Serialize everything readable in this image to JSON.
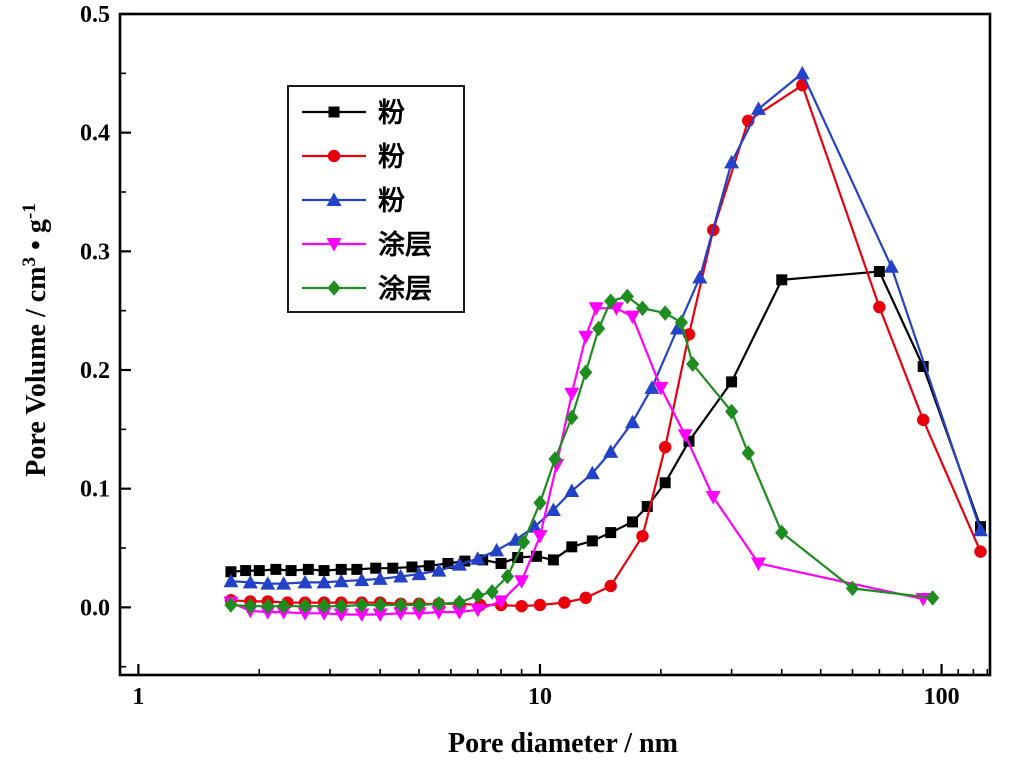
{
  "figure": {
    "background": "#ffffff"
  },
  "chart_data": {
    "type": "line",
    "title": "",
    "xlabel": "Pore diameter / nm",
    "ylabel": "Pore Volume / cm3 • g-1",
    "ylabel_parts": {
      "text1": "Pore Volume / cm",
      "sup1": "3",
      "text2": " • g",
      "sup2": "-1"
    },
    "x_scale": "log",
    "xlim": [
      0.9,
      132
    ],
    "ylim": [
      -0.057,
      0.5
    ],
    "grid": "off",
    "legend_position": "inside-upper-left",
    "xticks": {
      "values": [
        1,
        10,
        100
      ],
      "labels": [
        "1",
        "10",
        "100"
      ]
    },
    "x_minor_ticks": [
      2,
      3,
      4,
      5,
      6,
      7,
      8,
      9,
      20,
      30,
      40,
      50,
      60,
      70,
      80,
      90,
      110,
      120,
      130
    ],
    "yticks": {
      "values": [
        0.0,
        0.1,
        0.2,
        0.3,
        0.4,
        0.5
      ],
      "labels": [
        "0.0",
        "0.1",
        "0.2",
        "0.3",
        "0.4",
        "0.5"
      ]
    },
    "y_minor_ticks": [
      -0.05,
      0.05,
      0.15,
      0.25,
      0.35,
      0.45
    ],
    "series": [
      {
        "name": "粉",
        "color": "#000000",
        "marker": "square",
        "points": [
          [
            1.7,
            0.03
          ],
          [
            1.85,
            0.031
          ],
          [
            2.0,
            0.031
          ],
          [
            2.2,
            0.032
          ],
          [
            2.4,
            0.031
          ],
          [
            2.65,
            0.032
          ],
          [
            2.9,
            0.031
          ],
          [
            3.2,
            0.032
          ],
          [
            3.5,
            0.032
          ],
          [
            3.9,
            0.033
          ],
          [
            4.3,
            0.033
          ],
          [
            4.8,
            0.034
          ],
          [
            5.3,
            0.035
          ],
          [
            5.9,
            0.037
          ],
          [
            6.5,
            0.039
          ],
          [
            7.2,
            0.04
          ],
          [
            8.0,
            0.037
          ],
          [
            8.8,
            0.042
          ],
          [
            9.8,
            0.043
          ],
          [
            10.8,
            0.04
          ],
          [
            12,
            0.051
          ],
          [
            13.5,
            0.056
          ],
          [
            15,
            0.063
          ],
          [
            17,
            0.072
          ],
          [
            18.5,
            0.085
          ],
          [
            20.5,
            0.105
          ],
          [
            23.5,
            0.14
          ],
          [
            30,
            0.19
          ],
          [
            40,
            0.276
          ],
          [
            70,
            0.283
          ],
          [
            90,
            0.203
          ],
          [
            125,
            0.068
          ]
        ]
      },
      {
        "name": "粉",
        "color": "#e8000d",
        "marker": "circle",
        "points": [
          [
            1.7,
            0.006
          ],
          [
            1.9,
            0.005
          ],
          [
            2.1,
            0.005
          ],
          [
            2.35,
            0.004
          ],
          [
            2.6,
            0.004
          ],
          [
            2.9,
            0.004
          ],
          [
            3.2,
            0.004
          ],
          [
            3.6,
            0.004
          ],
          [
            4.0,
            0.004
          ],
          [
            4.5,
            0.003
          ],
          [
            5.0,
            0.003
          ],
          [
            5.6,
            0.003
          ],
          [
            6.3,
            0.003
          ],
          [
            7.1,
            0.002
          ],
          [
            8.0,
            0.002
          ],
          [
            9.0,
            0.001
          ],
          [
            10.0,
            0.002
          ],
          [
            11.5,
            0.004
          ],
          [
            13,
            0.008
          ],
          [
            15,
            0.018
          ],
          [
            18,
            0.06
          ],
          [
            20.5,
            0.135
          ],
          [
            23.5,
            0.23
          ],
          [
            27,
            0.318
          ],
          [
            33,
            0.41
          ],
          [
            45,
            0.44
          ],
          [
            70,
            0.253
          ],
          [
            90,
            0.158
          ],
          [
            125,
            0.047
          ]
        ]
      },
      {
        "name": "粉",
        "color": "#2442c8",
        "marker": "triangle-up",
        "points": [
          [
            1.7,
            0.022
          ],
          [
            1.9,
            0.021
          ],
          [
            2.1,
            0.02
          ],
          [
            2.3,
            0.02
          ],
          [
            2.6,
            0.021
          ],
          [
            2.9,
            0.021
          ],
          [
            3.2,
            0.022
          ],
          [
            3.6,
            0.023
          ],
          [
            4.0,
            0.024
          ],
          [
            4.5,
            0.026
          ],
          [
            5.0,
            0.028
          ],
          [
            5.6,
            0.031
          ],
          [
            6.3,
            0.036
          ],
          [
            7.0,
            0.041
          ],
          [
            7.8,
            0.048
          ],
          [
            8.7,
            0.057
          ],
          [
            9.7,
            0.068
          ],
          [
            10.8,
            0.082
          ],
          [
            12,
            0.098
          ],
          [
            13.5,
            0.113
          ],
          [
            15,
            0.131
          ],
          [
            17,
            0.156
          ],
          [
            19,
            0.185
          ],
          [
            22,
            0.235
          ],
          [
            25,
            0.278
          ],
          [
            30,
            0.375
          ],
          [
            35,
            0.42
          ],
          [
            45,
            0.45
          ],
          [
            75,
            0.287
          ],
          [
            125,
            0.065
          ]
        ]
      },
      {
        "name": "涂层",
        "color": "#ff00ff",
        "marker": "triangle-down",
        "points": [
          [
            1.7,
            0.004
          ],
          [
            1.9,
            -0.003
          ],
          [
            2.1,
            -0.004
          ],
          [
            2.3,
            -0.004
          ],
          [
            2.6,
            -0.005
          ],
          [
            2.9,
            -0.005
          ],
          [
            3.2,
            -0.006
          ],
          [
            3.6,
            -0.006
          ],
          [
            4.0,
            -0.006
          ],
          [
            4.5,
            -0.005
          ],
          [
            5.0,
            -0.005
          ],
          [
            5.6,
            -0.004
          ],
          [
            6.3,
            -0.004
          ],
          [
            7.0,
            -0.002
          ],
          [
            8.0,
            0.005
          ],
          [
            9.0,
            0.022
          ],
          [
            10,
            0.06
          ],
          [
            11,
            0.12
          ],
          [
            12,
            0.18
          ],
          [
            13,
            0.228
          ],
          [
            13.8,
            0.252
          ],
          [
            15.5,
            0.252
          ],
          [
            17,
            0.245
          ],
          [
            20,
            0.185
          ],
          [
            23,
            0.145
          ],
          [
            27,
            0.093
          ],
          [
            35,
            0.037
          ],
          [
            90,
            0.007
          ]
        ]
      },
      {
        "name": "涂层",
        "color": "#1f8c1f",
        "marker": "diamond",
        "points": [
          [
            1.7,
            0.002
          ],
          [
            1.9,
            0.001
          ],
          [
            2.1,
            0.001
          ],
          [
            2.3,
            0.001
          ],
          [
            2.6,
            0.001
          ],
          [
            2.9,
            0.001
          ],
          [
            3.2,
            0.001
          ],
          [
            3.6,
            0.002
          ],
          [
            4.0,
            0.002
          ],
          [
            4.5,
            0.002
          ],
          [
            5.0,
            0.002
          ],
          [
            5.6,
            0.003
          ],
          [
            6.3,
            0.004
          ],
          [
            7.0,
            0.01
          ],
          [
            7.6,
            0.013
          ],
          [
            8.3,
            0.026
          ],
          [
            9.1,
            0.055
          ],
          [
            10,
            0.088
          ],
          [
            10.9,
            0.125
          ],
          [
            12,
            0.16
          ],
          [
            13,
            0.198
          ],
          [
            14,
            0.235
          ],
          [
            15,
            0.258
          ],
          [
            16.5,
            0.262
          ],
          [
            18,
            0.252
          ],
          [
            20.5,
            0.248
          ],
          [
            22.5,
            0.24
          ],
          [
            24,
            0.205
          ],
          [
            30,
            0.165
          ],
          [
            33,
            0.13
          ],
          [
            40,
            0.063
          ],
          [
            60,
            0.016
          ],
          [
            95,
            0.008
          ]
        ]
      }
    ]
  }
}
